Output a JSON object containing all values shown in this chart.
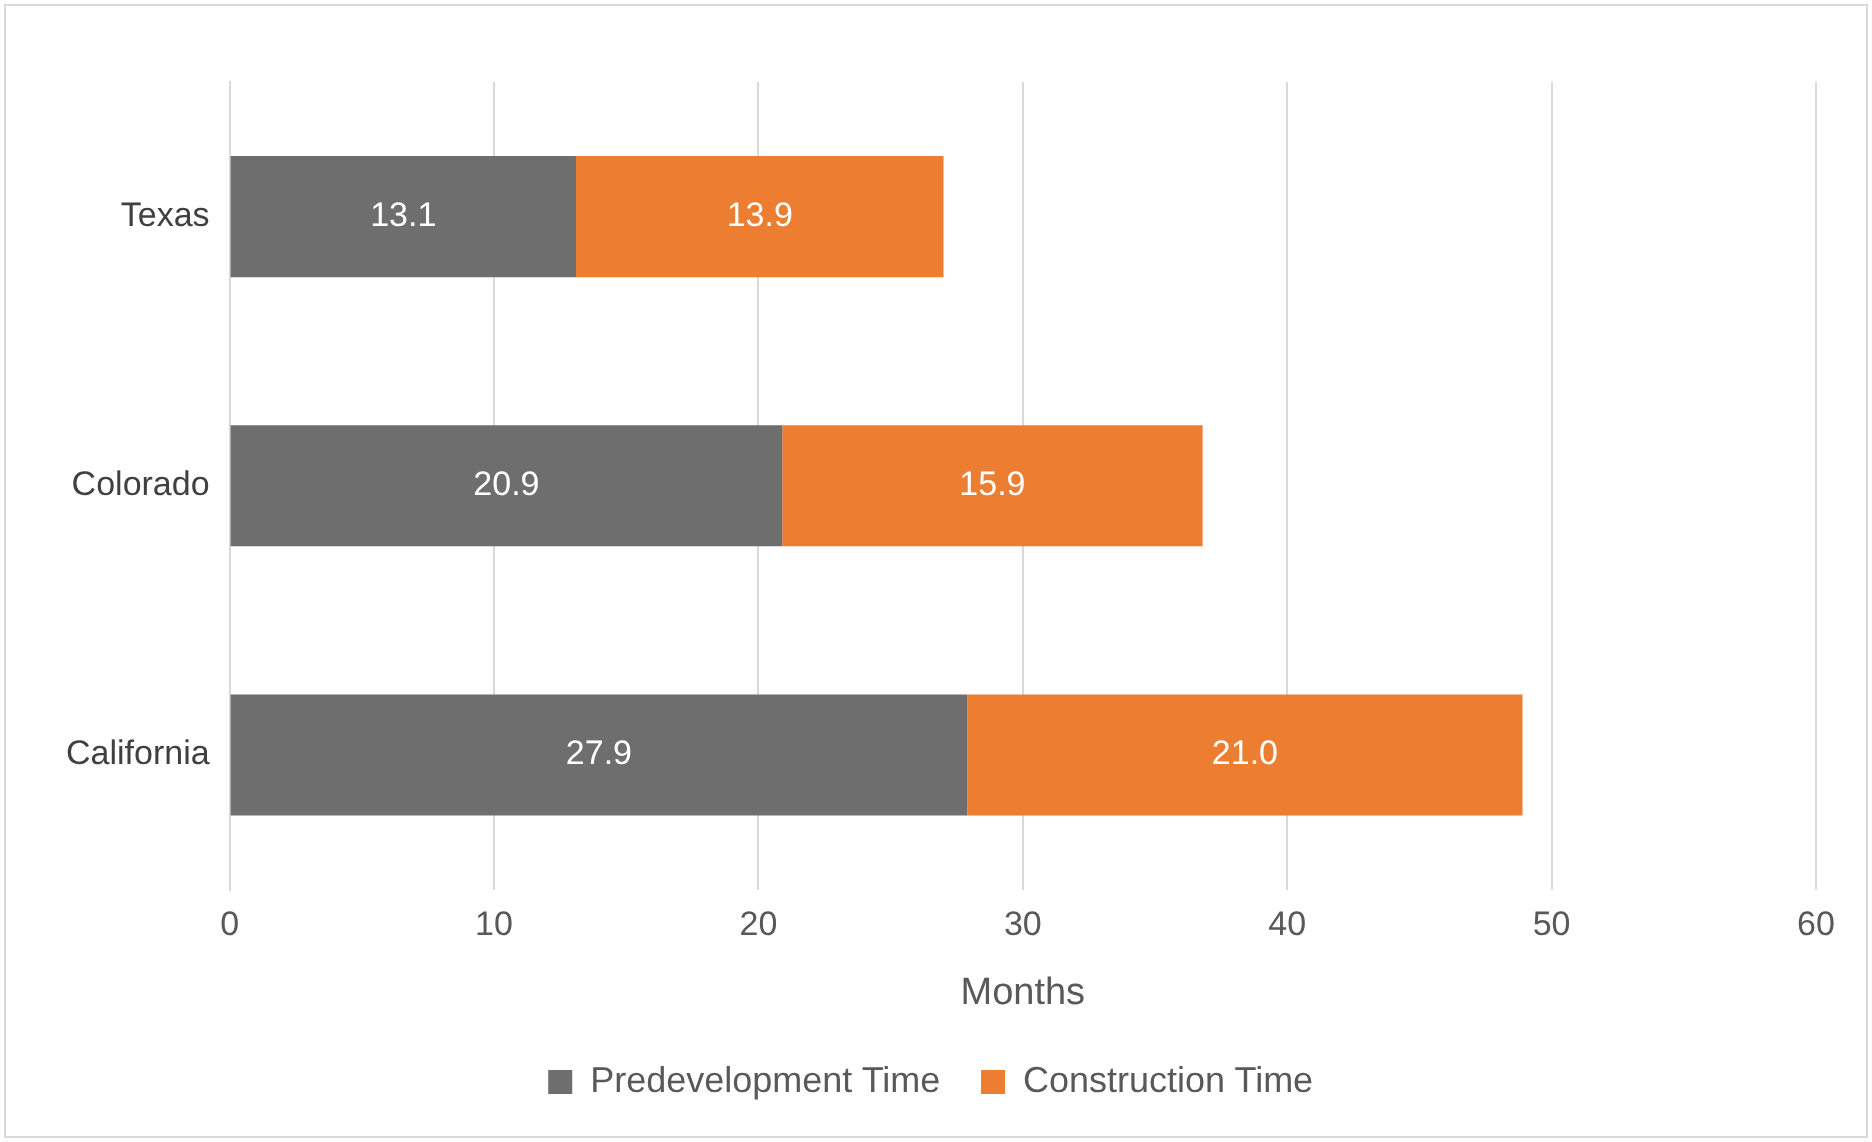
{
  "chart_data": {
    "type": "bar",
    "orientation": "horizontal",
    "stacked": true,
    "xlabel": "Months",
    "categories": [
      "Texas",
      "Colorado",
      "California"
    ],
    "series": [
      {
        "name": "Predevelopment Time",
        "color": "#6e6e6e",
        "values": [
          13.1,
          20.9,
          27.9
        ],
        "value_labels": [
          "13.1",
          "20.9",
          "27.9"
        ]
      },
      {
        "name": "Construction Time",
        "color": "#ed7d31",
        "values": [
          13.9,
          15.9,
          21.0
        ],
        "value_labels": [
          "13.9",
          "15.9",
          "21.0"
        ]
      }
    ],
    "xlim": [
      0,
      60
    ],
    "xticks": [
      0,
      10,
      20,
      30,
      40,
      50,
      60
    ],
    "grid": "x",
    "legend": "bottom"
  }
}
